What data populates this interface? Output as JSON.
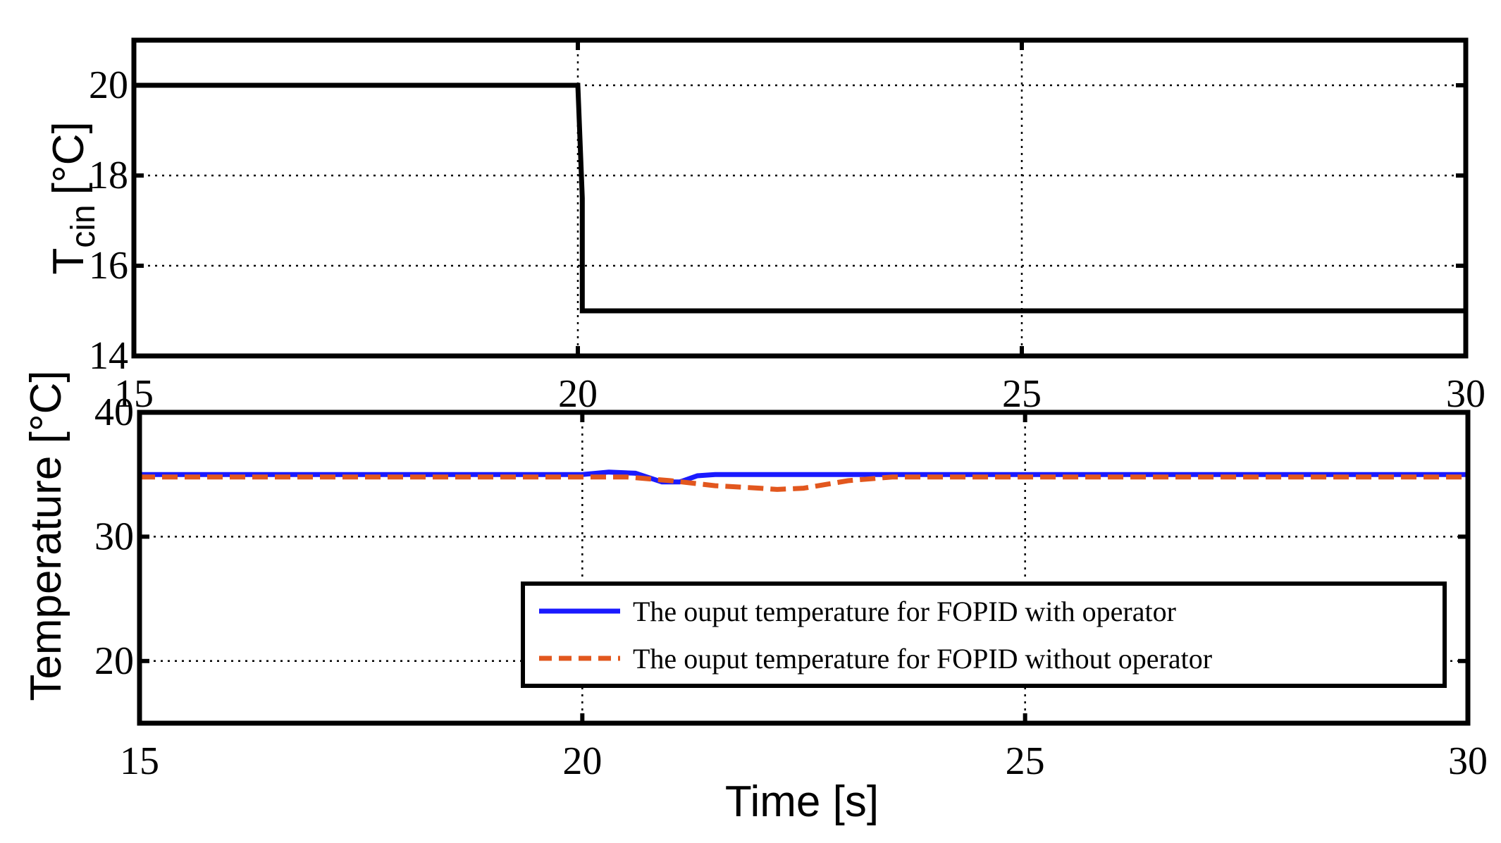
{
  "chart_data": [
    {
      "type": "line",
      "xlabel": "",
      "ylabel": "T_cin [°C]",
      "ylabel_main": "T",
      "ylabel_sub": "cin",
      "ylabel_unit": "[°C]",
      "xlim": [
        15,
        30
      ],
      "ylim": [
        14,
        21
      ],
      "x_ticks": [
        15,
        20,
        25,
        30
      ],
      "y_ticks": [
        14,
        16,
        18,
        20
      ],
      "grid": true,
      "series": [
        {
          "color": "#000000",
          "x": [
            15,
            20,
            20.05,
            20.05,
            30
          ],
          "y": [
            20,
            20,
            17.5,
            15,
            15
          ]
        }
      ]
    },
    {
      "type": "line",
      "xlabel": "Time [s]",
      "ylabel": "Temperature [°C]",
      "xlim": [
        15,
        30
      ],
      "ylim": [
        15,
        40
      ],
      "x_ticks": [
        15,
        20,
        25,
        30
      ],
      "y_ticks": [
        20,
        30,
        40
      ],
      "grid": true,
      "legend_position": "lower-right",
      "series": [
        {
          "name": "The ouput temperature for FOPID with operator",
          "color": "#1a1aff",
          "style": "solid",
          "x": [
            15,
            20,
            20.3,
            20.6,
            20.9,
            21.1,
            21.3,
            21.5,
            22.0,
            23.0,
            30
          ],
          "y": [
            35.0,
            35.0,
            35.2,
            35.1,
            34.4,
            34.4,
            34.9,
            35.0,
            35.0,
            35.0,
            35.0
          ]
        },
        {
          "name": "The ouput temperature for FOPID without operator",
          "color": "#e2571e",
          "style": "dashed",
          "x": [
            15,
            20,
            20.5,
            21.0,
            21.5,
            22.0,
            22.2,
            22.5,
            23.0,
            23.5,
            24.0,
            30
          ],
          "y": [
            34.8,
            34.8,
            34.8,
            34.5,
            34.1,
            33.9,
            33.8,
            33.9,
            34.5,
            34.8,
            34.8,
            34.8
          ]
        }
      ]
    }
  ]
}
